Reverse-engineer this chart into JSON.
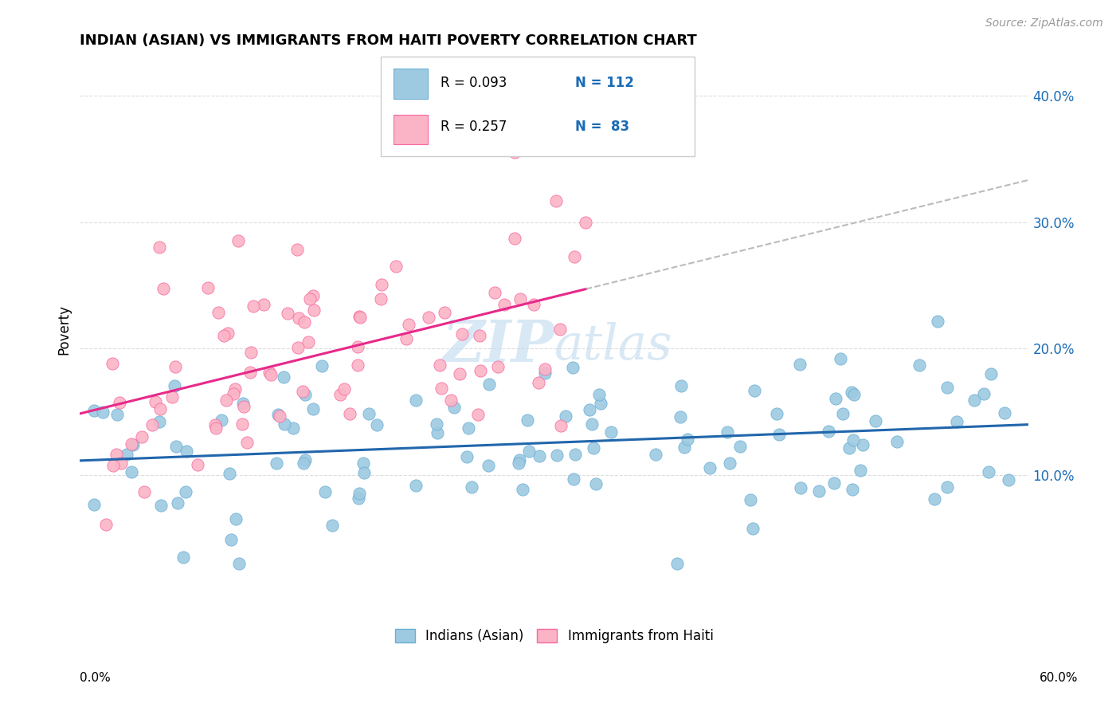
{
  "title": "INDIAN (ASIAN) VS IMMIGRANTS FROM HAITI POVERTY CORRELATION CHART",
  "source": "Source: ZipAtlas.com",
  "ylabel": "Poverty",
  "ytick_labels": [
    "10.0%",
    "20.0%",
    "30.0%",
    "40.0%"
  ],
  "yticks": [
    0.1,
    0.2,
    0.3,
    0.4
  ],
  "xlim": [
    0.0,
    0.6
  ],
  "ylim": [
    0.0,
    0.43
  ],
  "legend_r_blue": "R = 0.093",
  "legend_n_blue": "N = 112",
  "legend_r_pink": "R = 0.257",
  "legend_n_pink": "N =  83",
  "blue_color": "#9ecae1",
  "blue_edge_color": "#6baed6",
  "pink_color": "#fbb4c5",
  "pink_edge_color": "#f768a1",
  "blue_line_color": "#2166ac",
  "pink_line_color": "#e7298a",
  "dashed_line_color": "#bbbbbb",
  "watermark_color": "#c8dff0",
  "legend_text_color": "#1a6bb5",
  "grid_color": "#dddddd",
  "background": "#ffffff"
}
